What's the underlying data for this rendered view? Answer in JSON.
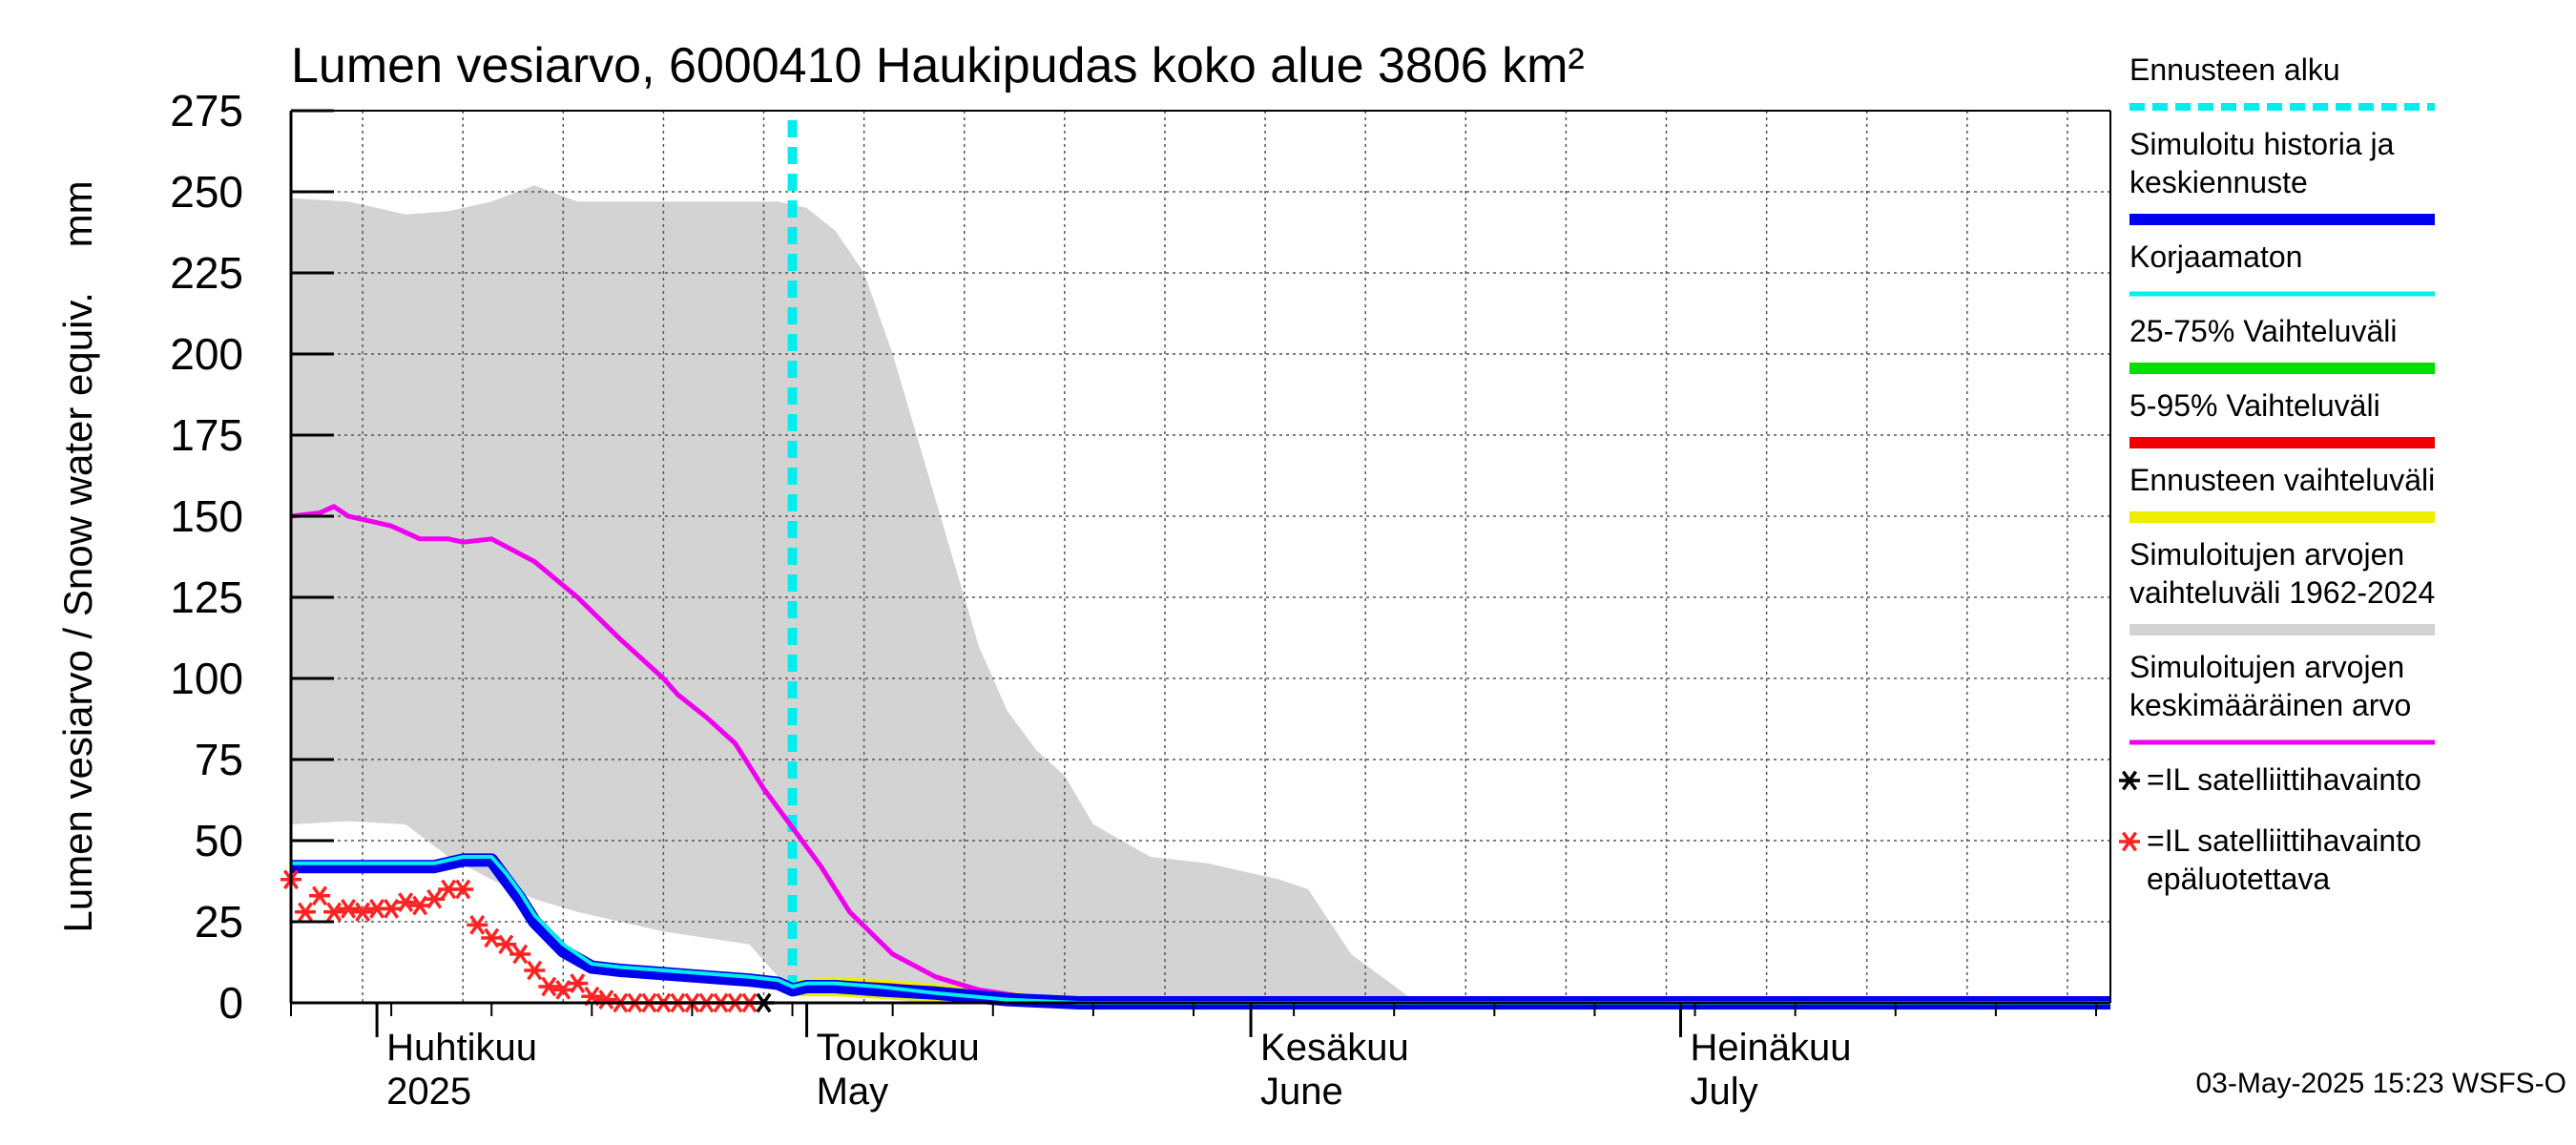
{
  "chart_data": {
    "type": "area",
    "title": "Lumen vesiarvo, 6000410 Haukipudas koko alue 3806 km²",
    "ylabel": "Lumen vesiarvo / Snow water equiv.    mm",
    "ylim": [
      0,
      275
    ],
    "yticks": [
      "0",
      "25",
      "50",
      "75",
      "100",
      "125",
      "150",
      "175",
      "200",
      "225",
      "250",
      "275"
    ],
    "grid": true,
    "legend_position": "right",
    "x_range": [
      "2025-03-26",
      "2025-07-31"
    ],
    "month_labels": [
      {
        "date": "2025-04-01",
        "fi": "Huhtikuu",
        "en": "2025"
      },
      {
        "date": "2025-05-01",
        "fi": "Toukokuu",
        "en": "May"
      },
      {
        "date": "2025-06-01",
        "fi": "Kesäkuu",
        "en": "June"
      },
      {
        "date": "2025-07-01",
        "fi": "Heinäkuu",
        "en": "July"
      }
    ],
    "forecast_start": "2025-04-30",
    "series": [
      {
        "name": "Simuloitujen arvojen vaihteluväli 1962-2024",
        "color": "#d3d3d3",
        "kind": "band",
        "x": [
          "2025-03-26",
          "2025-03-30",
          "2025-04-03",
          "2025-04-06",
          "2025-04-09",
          "2025-04-12",
          "2025-04-15",
          "2025-04-18",
          "2025-04-21",
          "2025-04-24",
          "2025-04-27",
          "2025-04-29",
          "2025-05-01",
          "2025-05-03",
          "2025-05-05",
          "2025-05-07",
          "2025-05-09",
          "2025-05-11",
          "2025-05-13",
          "2025-05-15",
          "2025-05-17",
          "2025-05-19",
          "2025-05-21",
          "2025-05-25",
          "2025-05-29",
          "2025-06-01",
          "2025-06-03",
          "2025-06-05",
          "2025-06-08",
          "2025-06-12",
          "2025-07-31"
        ],
        "upper": [
          248,
          247,
          243,
          244,
          247,
          252,
          247,
          247,
          247,
          247,
          247,
          247,
          245,
          238,
          225,
          200,
          170,
          140,
          110,
          90,
          78,
          70,
          55,
          45,
          43,
          40,
          38,
          35,
          15,
          2,
          2
        ],
        "lower": [
          55,
          56,
          55,
          45,
          38,
          32,
          28,
          25,
          22,
          20,
          18,
          8,
          5,
          3,
          2,
          1,
          0,
          0,
          0,
          0,
          0,
          0,
          0,
          0,
          0,
          0,
          0,
          0,
          0,
          0,
          0
        ]
      },
      {
        "name": "Simuloitujen arvojen keskimääräinen arvo",
        "color": "#ee00ee",
        "x": [
          "2025-03-26",
          "2025-03-28",
          "2025-03-29",
          "2025-03-30",
          "2025-04-02",
          "2025-04-04",
          "2025-04-06",
          "2025-04-07",
          "2025-04-09",
          "2025-04-12",
          "2025-04-15",
          "2025-04-18",
          "2025-04-21",
          "2025-04-22",
          "2025-04-24",
          "2025-04-26",
          "2025-04-28",
          "2025-04-30",
          "2025-05-02",
          "2025-05-04",
          "2025-05-07",
          "2025-05-10",
          "2025-05-13",
          "2025-05-16",
          "2025-05-20",
          "2025-07-31"
        ],
        "y": [
          150,
          151,
          153,
          150,
          147,
          143,
          143,
          142,
          143,
          136,
          125,
          112,
          100,
          95,
          88,
          80,
          66,
          54,
          42,
          28,
          15,
          8,
          4,
          2,
          1,
          1
        ]
      },
      {
        "name": "Simuloitu historia ja keskiennuste",
        "color": "#0000ee",
        "x": [
          "2025-03-26",
          "2025-04-05",
          "2025-04-07",
          "2025-04-09",
          "2025-04-10",
          "2025-04-11",
          "2025-04-12",
          "2025-04-14",
          "2025-04-16",
          "2025-04-18",
          "2025-04-21",
          "2025-04-24",
          "2025-04-27",
          "2025-04-29",
          "2025-04-30",
          "2025-05-01",
          "2025-05-03",
          "2025-05-06",
          "2025-05-10",
          "2025-05-15",
          "2025-05-20",
          "2025-07-31"
        ],
        "y": [
          42,
          42,
          44,
          44,
          38,
          32,
          25,
          16,
          11,
          10,
          9,
          8,
          7,
          6,
          4,
          5,
          5,
          4,
          3,
          1,
          0,
          0
        ]
      },
      {
        "name": "Korjaamaton",
        "color": "#00eeee",
        "x": [
          "2025-03-26",
          "2025-04-05",
          "2025-04-07",
          "2025-04-09",
          "2025-04-10",
          "2025-04-11",
          "2025-04-12",
          "2025-04-14",
          "2025-04-16",
          "2025-04-18",
          "2025-04-21",
          "2025-04-24",
          "2025-04-27",
          "2025-04-29",
          "2025-04-30",
          "2025-05-01",
          "2025-05-03",
          "2025-05-06",
          "2025-05-10",
          "2025-05-15",
          "2025-05-20",
          "2025-07-31"
        ],
        "y": [
          43,
          43,
          45,
          45,
          40,
          34,
          27,
          18,
          12,
          11,
          10,
          9,
          8,
          7,
          5,
          6,
          6,
          5,
          3,
          1,
          0,
          0
        ]
      },
      {
        "name": "25-75% Vaihteluväli",
        "color": "#00dd00",
        "kind": "band",
        "x": [
          "2025-04-30",
          "2025-05-03",
          "2025-05-07",
          "2025-05-12",
          "2025-05-18",
          "2025-07-31"
        ],
        "upper": [
          5,
          6,
          5,
          3,
          1,
          0
        ],
        "lower": [
          4,
          4,
          3,
          2,
          0,
          0
        ]
      },
      {
        "name": "5-95% Vaihteluväli",
        "color": "#ee0000",
        "kind": "band",
        "x": [
          "2025-04-30",
          "2025-05-03",
          "2025-05-07",
          "2025-05-12",
          "2025-05-18",
          "2025-07-31"
        ],
        "upper": [
          6,
          7,
          6,
          4,
          1,
          0
        ],
        "lower": [
          3,
          3,
          2,
          1,
          0,
          0
        ]
      },
      {
        "name": "Ennusteen vaihteluväli",
        "color": "#eeee00",
        "kind": "band",
        "x": [
          "2025-04-30",
          "2025-05-03",
          "2025-05-07",
          "2025-05-12",
          "2025-05-18",
          "2025-07-31"
        ],
        "upper": [
          7,
          8,
          7,
          5,
          2,
          0
        ],
        "lower": [
          2,
          2,
          1,
          0,
          0,
          0
        ]
      },
      {
        "name": "=IL satelliittihavainto epäluotettava",
        "color": "#ff2222",
        "kind": "markers",
        "x": [
          "2025-03-26",
          "2025-03-27",
          "2025-03-28",
          "2025-03-29",
          "2025-03-30",
          "2025-03-31",
          "2025-04-01",
          "2025-04-02",
          "2025-04-03",
          "2025-04-04",
          "2025-04-05",
          "2025-04-06",
          "2025-04-07",
          "2025-04-08",
          "2025-04-09",
          "2025-04-10",
          "2025-04-11",
          "2025-04-12",
          "2025-04-13",
          "2025-04-14",
          "2025-04-15",
          "2025-04-16",
          "2025-04-17",
          "2025-04-18",
          "2025-04-19",
          "2025-04-20",
          "2025-04-21",
          "2025-04-22",
          "2025-04-23",
          "2025-04-24",
          "2025-04-25",
          "2025-04-26",
          "2025-04-27"
        ],
        "y": [
          38,
          28,
          33,
          28,
          29,
          28,
          29,
          29,
          31,
          30,
          32,
          35,
          35,
          24,
          20,
          18,
          15,
          10,
          5,
          4,
          6,
          2,
          1,
          0,
          0,
          0,
          0,
          0,
          0,
          0,
          0,
          0,
          0
        ]
      },
      {
        "name": "=IL satelliittihavainto",
        "color": "#000000",
        "kind": "markers",
        "x": [
          "2025-04-28"
        ],
        "y": [
          0
        ]
      }
    ]
  },
  "legend": [
    {
      "label": "Ennusteen alku",
      "color": "#00eeee",
      "style": "dashed"
    },
    {
      "label": "Simuloitu historia ja\nkeskiennuste",
      "color": "#0000ee",
      "style": "thick"
    },
    {
      "label": "Korjaamaton",
      "color": "#00eeee",
      "style": "line"
    },
    {
      "label": "25-75% Vaihteluväli",
      "color": "#00dd00",
      "style": "thick"
    },
    {
      "label": "5-95% Vaihteluväli",
      "color": "#ee0000",
      "style": "thick"
    },
    {
      "label": "Ennusteen vaihteluväli",
      "color": "#eeee00",
      "style": "thick"
    },
    {
      "label": "Simuloitujen arvojen\nvaihteluväli 1962-2024",
      "color": "#d3d3d3",
      "style": "thick"
    },
    {
      "label": "Simuloitujen arvojen\nkeskimääräinen arvo",
      "color": "#ee00ee",
      "style": "line"
    },
    {
      "label": "=IL satelliittihavainto",
      "color": "#000000",
      "style": "marker"
    },
    {
      "label": "=IL satelliittihavainto\nepäluotettava",
      "color": "#ff2222",
      "style": "marker"
    }
  ],
  "footer": "03-May-2025 15:23 WSFS-O"
}
